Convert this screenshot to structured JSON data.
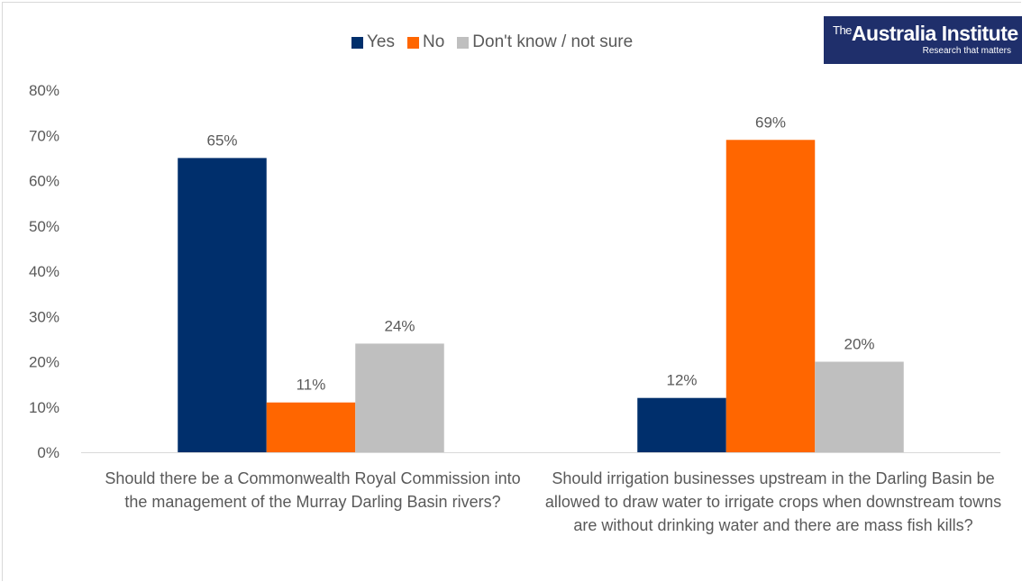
{
  "logo": {
    "the": "The",
    "name": "Australia Institute",
    "tagline": "Research that matters"
  },
  "chart_data": {
    "type": "bar",
    "categories": [
      "Should there be a Commonwealth Royal Commission into the management of the Murray Darling Basin rivers?",
      "Should irrigation businesses upstream in the Darling Basin be allowed to draw water to irrigate crops when downstream towns are without drinking water and there are mass fish kills?"
    ],
    "series": [
      {
        "name": "Yes",
        "color": "#002f6c",
        "values": [
          65,
          12
        ],
        "labels": [
          "65%",
          "12%"
        ]
      },
      {
        "name": "No",
        "color": "#ff6600",
        "values": [
          11,
          69
        ],
        "labels": [
          "11%",
          "69%"
        ]
      },
      {
        "name": "Don't know / not sure",
        "color": "#bfbfbf",
        "values": [
          24,
          20
        ],
        "labels": [
          "24%",
          "20%"
        ]
      }
    ],
    "ylim": [
      0,
      80
    ],
    "yticks": [
      "0%",
      "10%",
      "20%",
      "30%",
      "40%",
      "50%",
      "60%",
      "70%",
      "80%"
    ],
    "legend_position": "top",
    "grid": false
  }
}
